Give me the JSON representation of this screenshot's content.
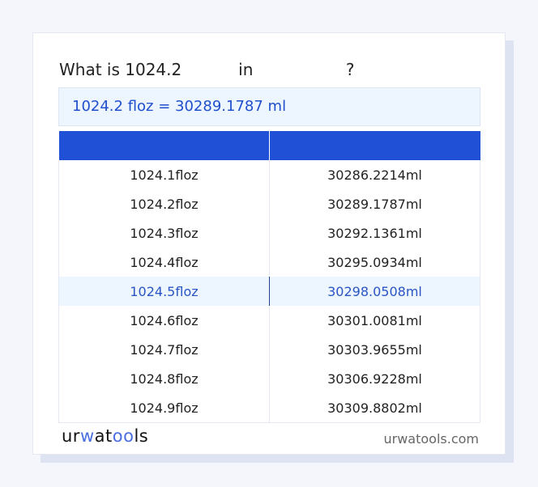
{
  "title": {
    "prefix": "What is 1024.2",
    "middle": "in",
    "suffix": "?"
  },
  "result": "1024.2 floz = 30289.1787 ml",
  "table": {
    "headers": [
      "",
      ""
    ],
    "rows": [
      [
        "1024.1floz",
        "30286.2214ml"
      ],
      [
        "1024.2floz",
        "30289.1787ml"
      ],
      [
        "1024.3floz",
        "30292.1361ml"
      ],
      [
        "1024.4floz",
        "30295.0934ml"
      ],
      [
        "1024.5floz",
        "30298.0508ml"
      ],
      [
        "1024.6floz",
        "30301.0081ml"
      ],
      [
        "1024.7floz",
        "30303.9655ml"
      ],
      [
        "1024.8floz",
        "30306.9228ml"
      ],
      [
        "1024.9floz",
        "30309.8802ml"
      ]
    ],
    "highlighted_row": 4
  },
  "footer": {
    "logo": "urwatools",
    "site": "urwatools.com"
  },
  "colors": {
    "accent": "#1f50d5",
    "highlight_bg": "#edf5ff",
    "result_text": "#1f4fcc"
  }
}
